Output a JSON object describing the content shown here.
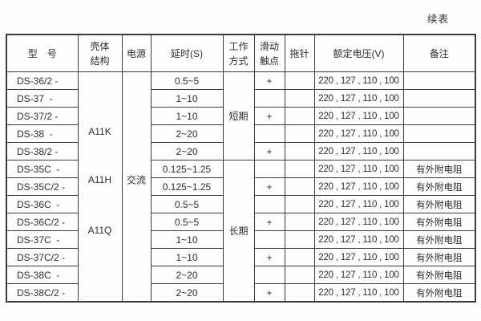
{
  "page": {
    "continued_label": "续表"
  },
  "table": {
    "headers": [
      "型　号",
      "壳体\n结构",
      "电源",
      "延时(S)",
      "工作\n方式",
      "滑动\n触点",
      "拖针",
      "额定电压(V)",
      "备注"
    ],
    "housing_groups": [
      {
        "label": "A11K"
      },
      {
        "label": "A11H"
      },
      {
        "label": "A11Q"
      }
    ],
    "power": "交流",
    "duty_modes": [
      {
        "label": "短期"
      },
      {
        "label": "长期"
      }
    ],
    "rows": [
      {
        "model": "DS-36/2 -",
        "delay": "0.5~5",
        "slide": "+",
        "needle": "",
        "rated": "220 , 127 , 110 , 100",
        "note": ""
      },
      {
        "model": "DS-37  -",
        "delay": "1~10",
        "slide": "",
        "needle": "",
        "rated": "220 , 127 , 110 , 100",
        "note": ""
      },
      {
        "model": "DS-37/2 -",
        "delay": "1~10",
        "slide": "+",
        "needle": "",
        "rated": "220 , 127 , 110 , 100",
        "note": ""
      },
      {
        "model": "DS-38  -",
        "delay": "2~20",
        "slide": "",
        "needle": "",
        "rated": "220 , 127 , 110 , 100",
        "note": ""
      },
      {
        "model": "DS-38/2 -",
        "delay": "2~20",
        "slide": "+",
        "needle": "",
        "rated": "220 , 127 , 110 , 100",
        "note": ""
      },
      {
        "model": "DS-35C  -",
        "delay": "0.125~1.25",
        "slide": "",
        "needle": "",
        "rated": "220 , 127 , 110 , 100",
        "note": "有外附电阻"
      },
      {
        "model": "DS-35C/2 -",
        "delay": "0.125~1.25",
        "slide": "+",
        "needle": "",
        "rated": "220 , 127 , 110 , 100",
        "note": "有外附电阻"
      },
      {
        "model": "DS-36C  -",
        "delay": "0.5~5",
        "slide": "",
        "needle": "",
        "rated": "220 , 127 , 110 , 100",
        "note": "有外附电阻"
      },
      {
        "model": "DS-36C/2 -",
        "delay": "0.5~5",
        "slide": "+",
        "needle": "",
        "rated": "220 , 127 , 110 , 100",
        "note": "有外附电阻"
      },
      {
        "model": "DS-37C  -",
        "delay": "1~10",
        "slide": "",
        "needle": "",
        "rated": "220 , 127 , 110 , 100",
        "note": "有外附电阻"
      },
      {
        "model": "DS-37C/2 -",
        "delay": "1~10",
        "slide": "+",
        "needle": "",
        "rated": "220 , 127 , 110 , 100",
        "note": "有外附电阻"
      },
      {
        "model": "DS-38C  -",
        "delay": "2~20",
        "slide": "",
        "needle": "",
        "rated": "220 , 127 , 110 , 100",
        "note": "有外附电阻"
      },
      {
        "model": "DS-38C/2 -",
        "delay": "2~20",
        "slide": "+",
        "needle": "",
        "rated": "220 , 127 , 110 , 100",
        "note": "有外附电阻"
      }
    ]
  }
}
